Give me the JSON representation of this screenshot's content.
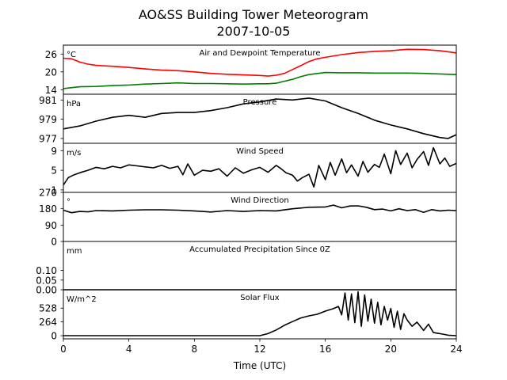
{
  "chart_data": {
    "type": "line",
    "title": "AO&SS Building Tower Meteorogram",
    "subtitle": "2007-10-05",
    "xlabel": "Time (UTC)",
    "xlim": [
      0,
      24
    ],
    "xticks": [
      0,
      4,
      8,
      12,
      16,
      20,
      24
    ],
    "panels": [
      {
        "title": "Air and Dewpoint Temperature",
        "unit": "°C",
        "ylim": [
          12.5,
          29
        ],
        "yticks": [
          14,
          20,
          26
        ],
        "series": [
          {
            "color": "#ff0000",
            "x": [
              0,
              0.5,
              1,
              1.5,
              2,
              3,
              4,
              5,
              6,
              7,
              8,
              9,
              10,
              11,
              12,
              12.5,
              13,
              13.5,
              14,
              14.5,
              15,
              15.5,
              16,
              17,
              18,
              19,
              20,
              21,
              22,
              23,
              24
            ],
            "values": [
              24.6,
              24.4,
              23.3,
              22.6,
              22.2,
              21.9,
              21.5,
              21.0,
              20.6,
              20.4,
              20.0,
              19.5,
              19.2,
              19.0,
              18.8,
              18.6,
              18.9,
              19.5,
              20.8,
              22.1,
              23.5,
              24.4,
              24.9,
              25.8,
              26.5,
              26.9,
              27.1,
              27.6,
              27.5,
              27.1,
              26.4
            ]
          },
          {
            "color": "#008000",
            "x": [
              0,
              1,
              2,
              3,
              4,
              5,
              6,
              7,
              8,
              9,
              10,
              11,
              12,
              12.5,
              13,
              14,
              14.5,
              15,
              16,
              17,
              18,
              19,
              20,
              21,
              22,
              23,
              24
            ],
            "values": [
              14.4,
              15.0,
              15.1,
              15.4,
              15.6,
              15.9,
              16.1,
              16.3,
              16.1,
              16.1,
              16.0,
              15.9,
              16.0,
              16.0,
              16.2,
              17.5,
              18.4,
              19.1,
              19.8,
              19.7,
              19.7,
              19.6,
              19.6,
              19.6,
              19.5,
              19.3,
              19.1
            ]
          }
        ]
      },
      {
        "title": "Pressure",
        "unit": "hPa",
        "ylim": [
          976.5,
          981.6
        ],
        "yticks": [
          977,
          979,
          981
        ],
        "series": [
          {
            "color": "#000000",
            "x": [
              0,
              1,
              2,
              3,
              4,
              5,
              6,
              7,
              8,
              9,
              10,
              11,
              12,
              13,
              14,
              15,
              16,
              17,
              18,
              19,
              20,
              21,
              22,
              23,
              23.5,
              24
            ],
            "values": [
              978.0,
              978.3,
              978.8,
              979.2,
              979.4,
              979.2,
              979.6,
              979.7,
              979.7,
              979.9,
              980.2,
              980.6,
              980.8,
              981.1,
              981.0,
              981.2,
              980.9,
              980.2,
              979.6,
              978.9,
              978.4,
              978.0,
              977.5,
              977.1,
              977.0,
              977.4
            ]
          }
        ]
      },
      {
        "title": "Wind Speed",
        "unit": "m/s",
        "ylim": [
          0.5,
          10.5
        ],
        "yticks": [
          1,
          5,
          9
        ],
        "series": [
          {
            "color": "#000000",
            "x": [
              0,
              0.3,
              0.6,
              1,
              1.5,
              2,
              2.5,
              3,
              3.5,
              4,
              4.5,
              5,
              5.5,
              6,
              6.5,
              7,
              7.3,
              7.6,
              8,
              8.5,
              9,
              9.5,
              10,
              10.5,
              11,
              11.5,
              12,
              12.5,
              13,
              13.3,
              13.6,
              14,
              14.3,
              14.6,
              15,
              15.3,
              15.6,
              16,
              16.3,
              16.6,
              17,
              17.3,
              17.6,
              18,
              18.3,
              18.6,
              19,
              19.3,
              19.6,
              20,
              20.3,
              20.6,
              21,
              21.3,
              21.6,
              22,
              22.3,
              22.6,
              23,
              23.3,
              23.6,
              24
            ],
            "values": [
              2.0,
              3.5,
              4.0,
              4.5,
              5.0,
              5.6,
              5.3,
              5.8,
              5.5,
              6.1,
              5.9,
              5.7,
              5.5,
              6.0,
              5.4,
              5.8,
              4.1,
              6.3,
              4.0,
              5.0,
              4.8,
              5.3,
              3.8,
              5.5,
              4.4,
              5.1,
              5.6,
              4.6,
              6.0,
              5.3,
              4.5,
              4.0,
              2.8,
              3.5,
              4.2,
              1.6,
              6.0,
              3.1,
              6.6,
              4.0,
              7.3,
              4.5,
              6.1,
              3.8,
              6.8,
              4.6,
              6.2,
              5.6,
              8.3,
              4.3,
              9.0,
              6.2,
              8.5,
              5.5,
              7.2,
              8.8,
              6.0,
              9.6,
              6.3,
              7.5,
              5.8,
              6.4
            ]
          }
        ]
      },
      {
        "title": "Wind Direction",
        "unit": "°",
        "ylim": [
          0,
          270
        ],
        "yticks": [
          0,
          90,
          180,
          270
        ],
        "series": [
          {
            "color": "#000000",
            "x": [
              0,
              0.5,
              1,
              1.5,
              2,
              3,
              4,
              5,
              6,
              7,
              8,
              9,
              10,
              11,
              12,
              13,
              14,
              15,
              16,
              16.5,
              17,
              17.5,
              18,
              18.5,
              19,
              19.5,
              20,
              20.5,
              21,
              21.5,
              22,
              22.5,
              23,
              23.5,
              24
            ],
            "values": [
              172,
              158,
              165,
              163,
              170,
              168,
              172,
              174,
              174,
              172,
              168,
              162,
              170,
              165,
              170,
              168,
              180,
              188,
              190,
              200,
              185,
              195,
              196,
              188,
              175,
              178,
              168,
              180,
              170,
              175,
              160,
              175,
              168,
              172,
              170
            ]
          }
        ]
      },
      {
        "title": "Accumulated Precipitation Since 0Z",
        "unit": "mm",
        "ylim": [
          0,
          0.25
        ],
        "yticks": [
          0.0,
          0.05,
          0.1
        ],
        "series": [
          {
            "color": "#000000",
            "x": [
              0,
              24
            ],
            "values": [
              0,
              0
            ]
          }
        ]
      },
      {
        "title": "Solar Flux",
        "unit": "W/m^2",
        "ylim": [
          -60,
          880
        ],
        "yticks": [
          0,
          264,
          528
        ],
        "series": [
          {
            "color": "#000000",
            "x": [
              0,
              12,
              12.5,
              13,
              13.5,
              14,
              14.5,
              15,
              15.5,
              16,
              16.5,
              16.8,
              17,
              17.2,
              17.4,
              17.6,
              17.8,
              18,
              18.2,
              18.4,
              18.6,
              18.8,
              19,
              19.2,
              19.4,
              19.6,
              19.8,
              20,
              20.2,
              20.4,
              20.6,
              20.8,
              21,
              21.3,
              21.6,
              22,
              22.3,
              22.6,
              23,
              23.5,
              24
            ],
            "values": [
              0,
              0,
              40,
              110,
              200,
              270,
              340,
              380,
              410,
              470,
              520,
              560,
              400,
              820,
              300,
              800,
              250,
              840,
              180,
              780,
              280,
              700,
              240,
              640,
              210,
              560,
              300,
              520,
              160,
              470,
              120,
              420,
              300,
              180,
              260,
              100,
              220,
              60,
              40,
              10,
              0
            ]
          }
        ]
      }
    ]
  }
}
